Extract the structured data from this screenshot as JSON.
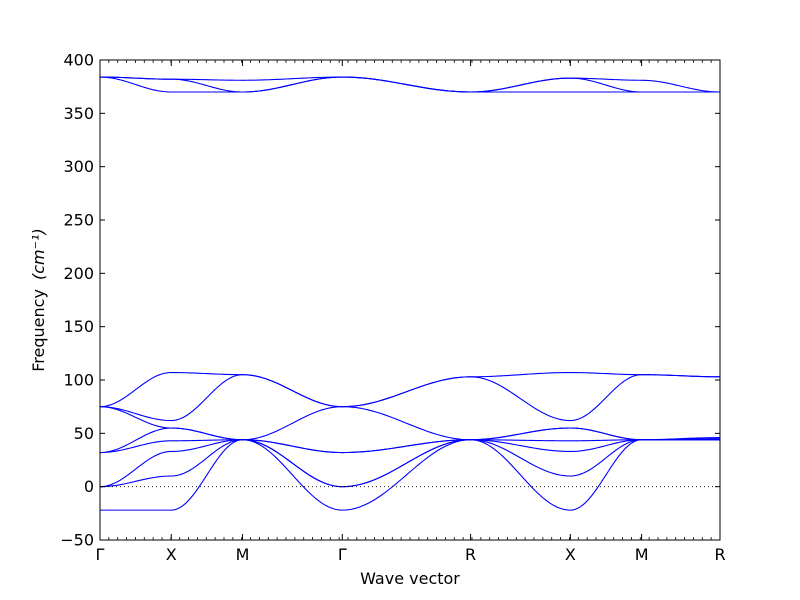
{
  "chart_data": {
    "type": "line",
    "xlabel": "Wave vector",
    "ylabel": "Frequency",
    "ylabel_unit": "(cm⁻¹)",
    "ylim": [
      -50,
      400
    ],
    "yticks": [
      -50,
      0,
      50,
      100,
      150,
      200,
      250,
      300,
      350,
      400
    ],
    "xlim": [
      0,
      8.7
    ],
    "xticks": [
      {
        "x": 0,
        "label": "Γ"
      },
      {
        "x": 1.0,
        "label": "X"
      },
      {
        "x": 2.0,
        "label": "M"
      },
      {
        "x": 3.4,
        "label": "Γ"
      },
      {
        "x": 5.2,
        "label": "R"
      },
      {
        "x": 6.6,
        "label": "X"
      },
      {
        "x": 7.6,
        "label": "M"
      },
      {
        "x": 8.7,
        "label": "R"
      }
    ],
    "zero_line": {
      "y": 0,
      "style": "dotted"
    },
    "grid": false,
    "line_color": "#0000ff",
    "series": [
      {
        "x": [
          0,
          1.0,
          2.0,
          3.4,
          5.2,
          6.6,
          7.6,
          8.7
        ],
        "y": [
          384,
          382,
          381,
          384,
          370,
          383,
          381,
          370
        ]
      },
      {
        "x": [
          0,
          1.0,
          2.0,
          3.4,
          5.2,
          6.6,
          7.6,
          8.7
        ],
        "y": [
          384,
          370,
          370,
          384,
          370,
          370,
          370,
          370
        ]
      },
      {
        "x": [
          0,
          1.0,
          2.0,
          3.4,
          5.2,
          6.6,
          7.6,
          8.7
        ],
        "y": [
          384,
          382,
          370,
          384,
          370,
          383,
          370,
          370
        ]
      },
      {
        "x": [
          0,
          1.0,
          2.0,
          3.4,
          5.2,
          6.6,
          7.6,
          8.7
        ],
        "y": [
          75,
          107,
          105,
          75,
          103,
          107,
          105,
          103
        ]
      },
      {
        "x": [
          0,
          1.0,
          2.0,
          3.4,
          5.2,
          6.6,
          7.6,
          8.7
        ],
        "y": [
          75,
          62,
          105,
          75,
          103,
          62,
          105,
          103
        ]
      },
      {
        "x": [
          0,
          1.0,
          2.0,
          3.4,
          5.2,
          6.6,
          7.6,
          8.7
        ],
        "y": [
          75,
          55,
          44,
          75,
          44,
          55,
          44,
          46
        ]
      },
      {
        "x": [
          0,
          1.0,
          2.0,
          3.4,
          5.2,
          6.6,
          7.6,
          8.7
        ],
        "y": [
          32,
          55,
          44,
          32,
          44,
          55,
          44,
          45
        ]
      },
      {
        "x": [
          0,
          1.0,
          2.0,
          3.4,
          5.2,
          6.6,
          7.6,
          8.7
        ],
        "y": [
          32,
          43,
          44,
          32,
          44,
          43,
          44,
          44
        ]
      },
      {
        "x": [
          0,
          1.0,
          2.0,
          3.4,
          5.2,
          6.6,
          7.6,
          8.7
        ],
        "y": [
          0,
          33,
          44,
          0,
          44,
          33,
          44,
          44
        ]
      },
      {
        "x": [
          0,
          1.0,
          2.0,
          3.4,
          5.2,
          6.6,
          7.6,
          8.7
        ],
        "y": [
          0,
          10,
          44,
          0,
          44,
          10,
          44,
          44
        ]
      },
      {
        "x": [
          0,
          1.0,
          2.0,
          3.4,
          5.2,
          6.6,
          7.6,
          8.7
        ],
        "y": [
          -22,
          -22,
          44,
          -22,
          44,
          -22,
          44,
          44
        ]
      }
    ]
  }
}
